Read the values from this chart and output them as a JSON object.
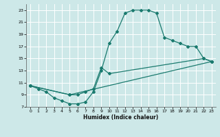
{
  "xlabel": "Humidex (Indice chaleur)",
  "bg_color": "#cde8e8",
  "grid_color": "#b0d4d4",
  "line_color": "#1a7a6e",
  "xlim": [
    -0.5,
    23.5
  ],
  "ylim": [
    7,
    24
  ],
  "xticks": [
    0,
    1,
    2,
    3,
    4,
    5,
    6,
    7,
    8,
    9,
    10,
    11,
    12,
    13,
    14,
    15,
    16,
    17,
    18,
    19,
    20,
    21,
    22,
    23
  ],
  "yticks": [
    7,
    9,
    11,
    13,
    15,
    17,
    19,
    21,
    23
  ],
  "series1": [
    [
      0,
      10.5
    ],
    [
      1,
      10.0
    ],
    [
      2,
      9.5
    ],
    [
      3,
      8.5
    ],
    [
      4,
      8.0
    ],
    [
      5,
      7.5
    ],
    [
      6,
      7.5
    ],
    [
      7,
      7.8
    ],
    [
      8,
      9.5
    ],
    [
      9,
      13.0
    ],
    [
      10,
      17.5
    ],
    [
      11,
      19.5
    ],
    [
      12,
      22.5
    ],
    [
      13,
      23.0
    ],
    [
      14,
      23.0
    ],
    [
      15,
      23.0
    ],
    [
      16,
      22.5
    ],
    [
      17,
      18.5
    ],
    [
      18,
      18.0
    ],
    [
      19,
      17.5
    ],
    [
      20,
      17.0
    ],
    [
      21,
      17.0
    ],
    [
      22,
      15.0
    ],
    [
      23,
      14.5
    ]
  ],
  "series2": [
    [
      0,
      10.5
    ],
    [
      5,
      9.0
    ],
    [
      6,
      9.0
    ],
    [
      7,
      9.5
    ],
    [
      8,
      10.0
    ],
    [
      9,
      13.5
    ],
    [
      10,
      12.5
    ],
    [
      22,
      15.0
    ],
    [
      23,
      14.5
    ]
  ],
  "series3": [
    [
      0,
      10.5
    ],
    [
      5,
      9.0
    ],
    [
      23,
      14.5
    ]
  ]
}
